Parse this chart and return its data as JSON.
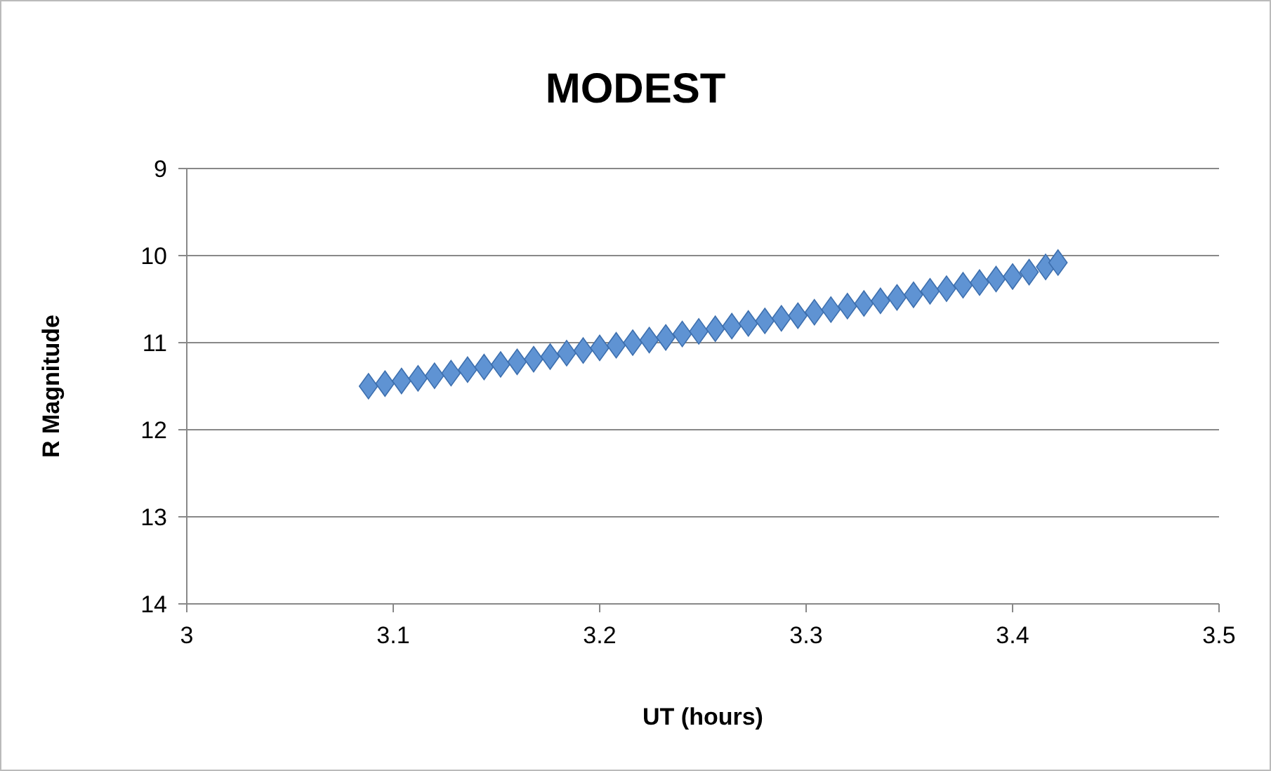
{
  "chart_data": {
    "type": "scatter",
    "title": "MODEST",
    "xlabel": "UT (hours)",
    "ylabel": "R Magnitude",
    "xlim": [
      3,
      3.5
    ],
    "xticks": [
      3,
      3.1,
      3.2,
      3.3,
      3.4,
      3.5
    ],
    "ylim": [
      14,
      9
    ],
    "yticks": [
      9,
      10,
      11,
      12,
      13,
      14
    ],
    "grid": "y",
    "marker": "diamond",
    "series": [
      {
        "color": "#5f93d3",
        "x": [
          3.088,
          3.096,
          3.104,
          3.112,
          3.12,
          3.128,
          3.136,
          3.144,
          3.152,
          3.16,
          3.168,
          3.176,
          3.184,
          3.192,
          3.2,
          3.208,
          3.216,
          3.224,
          3.232,
          3.24,
          3.248,
          3.256,
          3.264,
          3.272,
          3.28,
          3.288,
          3.296,
          3.304,
          3.312,
          3.32,
          3.328,
          3.336,
          3.344,
          3.352,
          3.36,
          3.368,
          3.376,
          3.384,
          3.392,
          3.4,
          3.408,
          3.416,
          3.422
        ],
        "values": [
          11.5,
          11.47,
          11.44,
          11.41,
          11.38,
          11.35,
          11.31,
          11.28,
          11.25,
          11.22,
          11.19,
          11.16,
          11.12,
          11.09,
          11.06,
          11.03,
          11.0,
          10.97,
          10.94,
          10.9,
          10.87,
          10.84,
          10.81,
          10.78,
          10.75,
          10.72,
          10.69,
          10.65,
          10.62,
          10.58,
          10.55,
          10.52,
          10.48,
          10.45,
          10.41,
          10.38,
          10.34,
          10.31,
          10.27,
          10.24,
          10.19,
          10.13,
          10.08
        ]
      }
    ]
  }
}
